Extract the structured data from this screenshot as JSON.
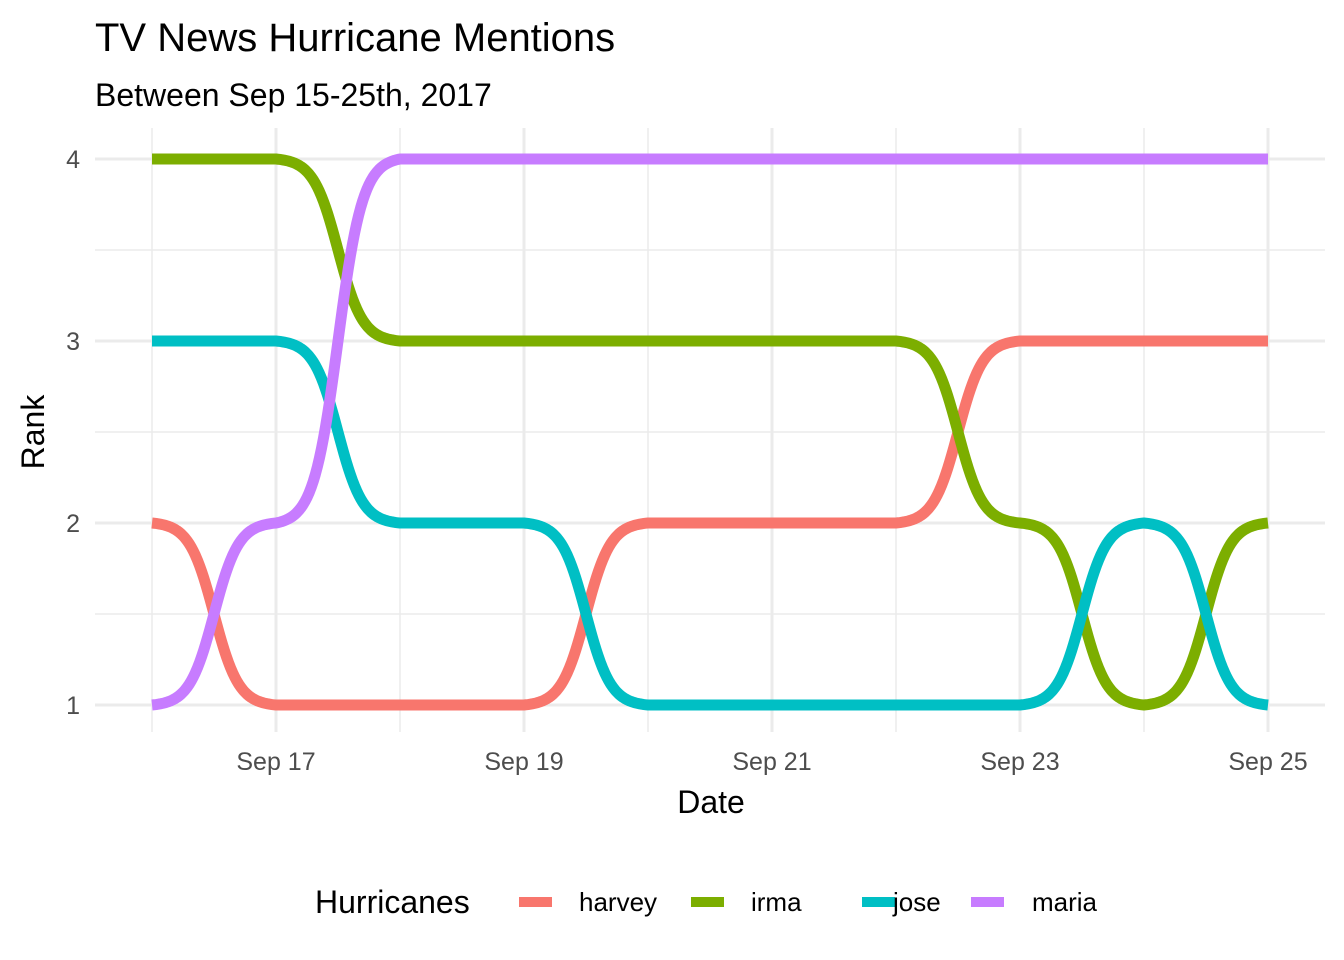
{
  "chart_data": {
    "type": "line",
    "title": "TV News Hurricane Mentions",
    "subtitle": "Between Sep 15-25th, 2017",
    "xlabel": "Date",
    "ylabel": "Rank",
    "x": [
      "2017-09-16",
      "2017-09-17",
      "2017-09-18",
      "2017-09-19",
      "2017-09-20",
      "2017-09-21",
      "2017-09-22",
      "2017-09-23",
      "2017-09-24",
      "2017-09-25"
    ],
    "x_tick_labels": [
      "Sep 17",
      "Sep 19",
      "Sep 21",
      "Sep 23",
      "Sep 25"
    ],
    "x_tick_dates": [
      "2017-09-17",
      "2017-09-19",
      "2017-09-21",
      "2017-09-23",
      "2017-09-25"
    ],
    "y_tick_labels": [
      "1",
      "2",
      "3",
      "4"
    ],
    "ylim": [
      1,
      4
    ],
    "grid": true,
    "legend": {
      "title": "Hurricanes",
      "position": "bottom"
    },
    "series": [
      {
        "name": "harvey",
        "color": "#F8766D",
        "values": [
          2,
          1,
          1,
          1,
          2,
          2,
          2,
          3,
          3,
          3
        ]
      },
      {
        "name": "irma",
        "color": "#7CAE00",
        "values": [
          4,
          4,
          3,
          3,
          3,
          3,
          3,
          2,
          1,
          2
        ]
      },
      {
        "name": "jose",
        "color": "#00BFC4",
        "values": [
          3,
          3,
          2,
          2,
          1,
          1,
          1,
          1,
          2,
          1
        ]
      },
      {
        "name": "maria",
        "color": "#C77CFF",
        "values": [
          1,
          2,
          4,
          4,
          4,
          4,
          4,
          4,
          4,
          4
        ]
      }
    ]
  }
}
